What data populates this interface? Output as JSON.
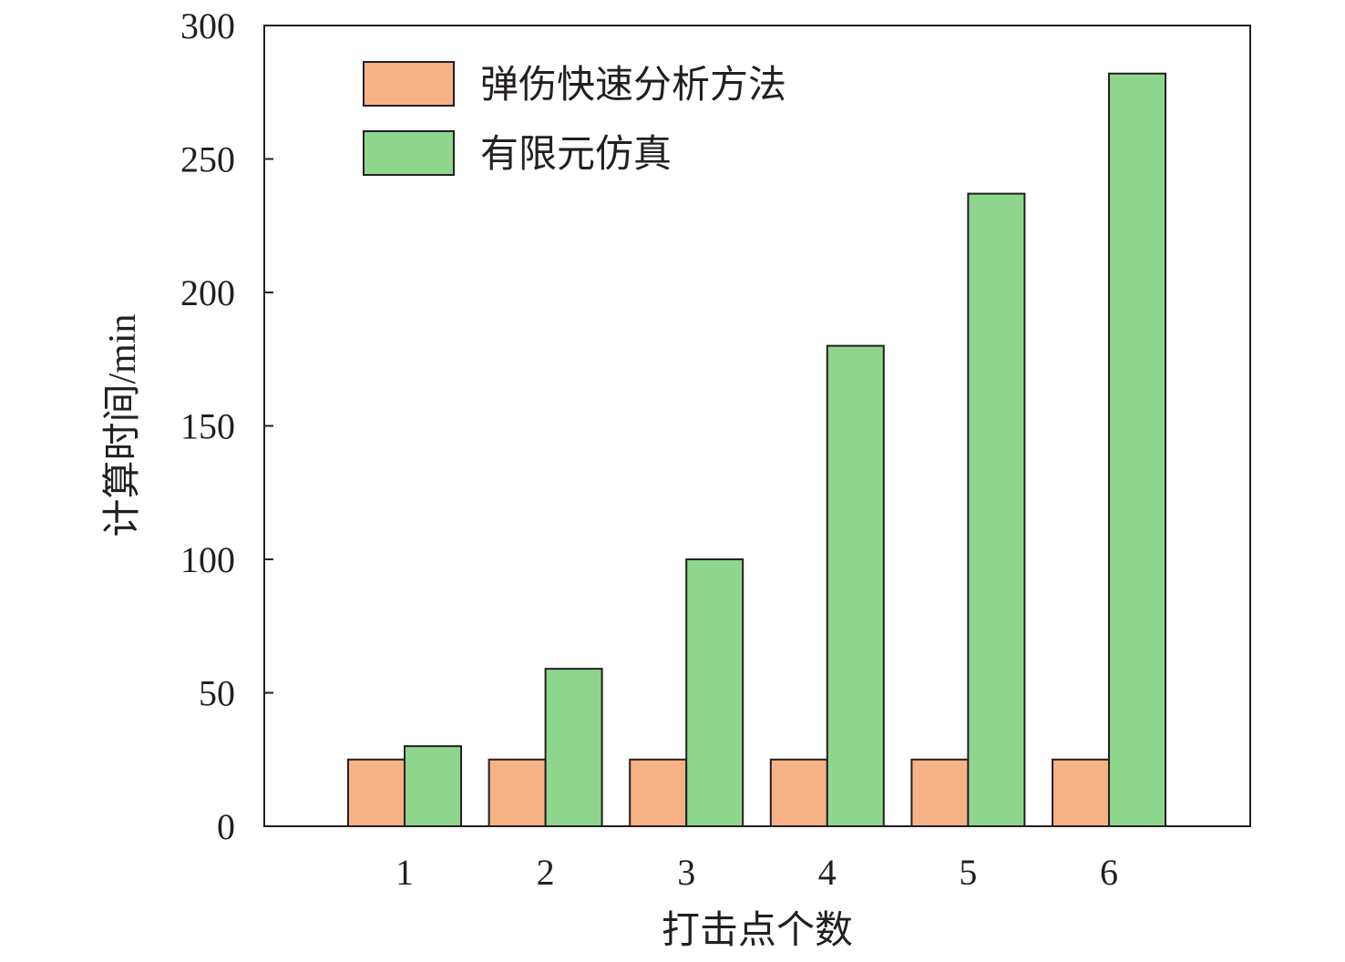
{
  "chart_data": {
    "type": "bar",
    "title": "",
    "xlabel": "打击点个数",
    "ylabel": "计算时间/min",
    "categories": [
      "1",
      "2",
      "3",
      "4",
      "5",
      "6"
    ],
    "series": [
      {
        "name": "弹伤快速分析方法",
        "color": "#f6b286",
        "values": [
          25,
          25,
          25,
          25,
          25,
          25
        ]
      },
      {
        "name": "有限元仿真",
        "color": "#8ed68e",
        "values": [
          30,
          59,
          100,
          180,
          237,
          282
        ]
      }
    ],
    "ylim": [
      0,
      300
    ],
    "yticks": [
      0,
      50,
      100,
      150,
      200,
      250,
      300
    ],
    "grid": false,
    "legend_position": "top-left"
  }
}
